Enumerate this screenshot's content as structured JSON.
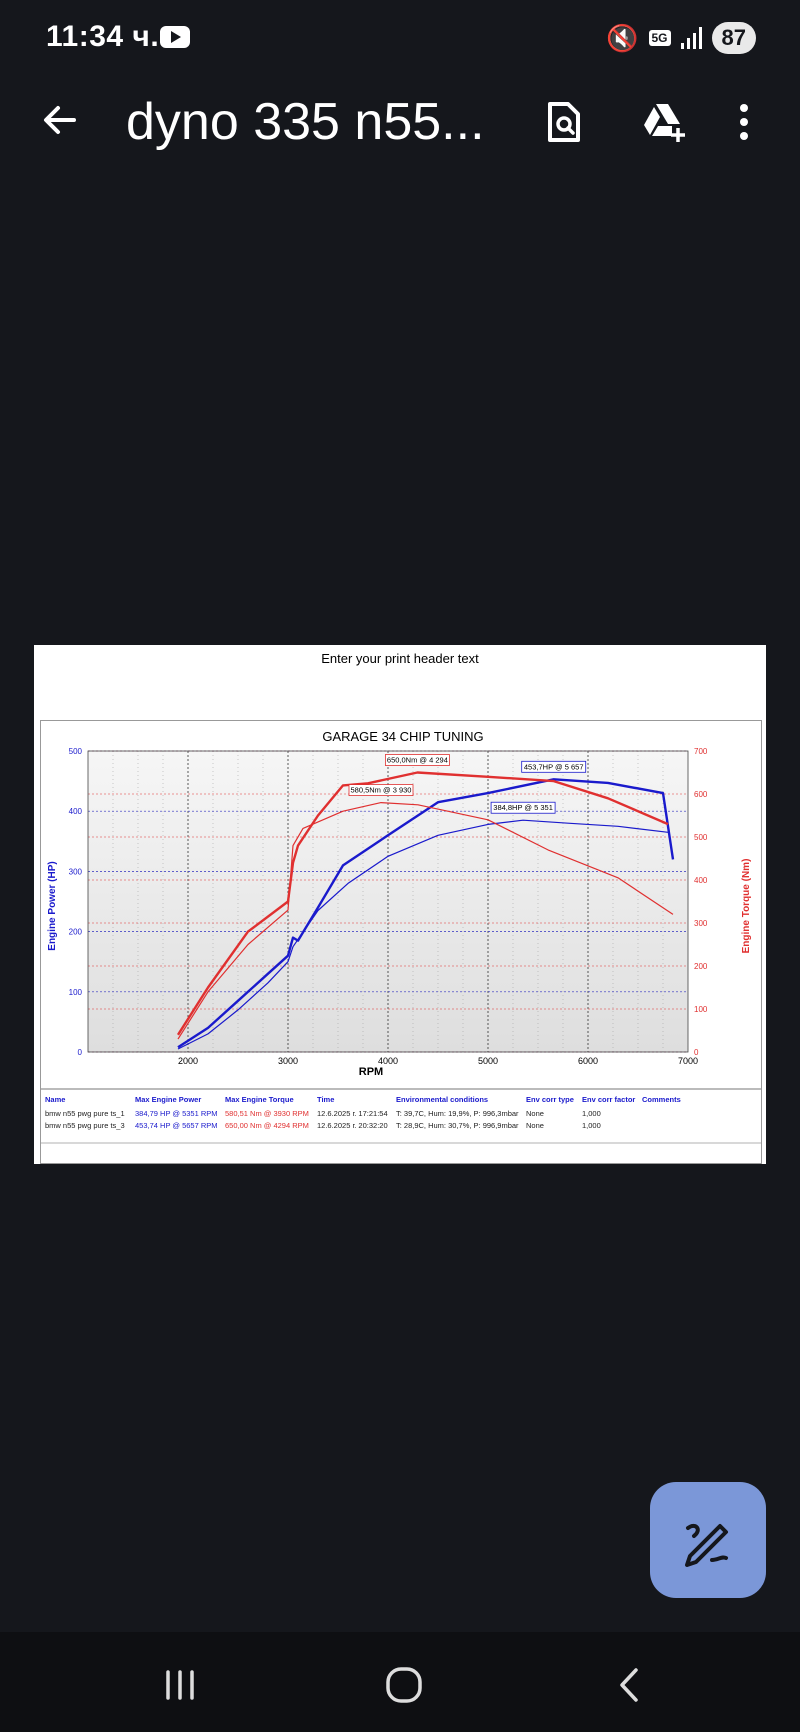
{
  "status_bar": {
    "time": "11:34 ч.",
    "network": "5G",
    "battery": "87"
  },
  "app_bar": {
    "title": "dyno 335 n55...",
    "icons": [
      "back-arrow-icon",
      "search-document-icon",
      "add-to-drive-icon",
      "more-options-icon"
    ]
  },
  "document": {
    "print_header": "Enter your print header text",
    "chart_title": "GARAGE 34 CHIP TUNING",
    "table": {
      "headers": [
        "Name",
        "Max Engine Power",
        "Max Engine Torque",
        "Time",
        "Environmental conditions",
        "Env corr type",
        "Env corr factor",
        "Comments"
      ],
      "rows": [
        [
          "bmw n55 pwg pure ts_1",
          "384,79 HP @ 5351 RPM",
          "580,51 Nm @ 3930 RPM",
          "12.6.2025 г. 17:21:54",
          "T: 39,7C, Hum: 19,9%, P: 996,3mbar",
          "None",
          "1,000",
          ""
        ],
        [
          "bmw n55 pwg pure ts_3",
          "453,74 HP @ 5657 RPM",
          "650,00 Nm @ 4294 RPM",
          "12.6.2025 г. 20:32:20",
          "T: 28,9C, Hum: 30,7%, P: 996,9mbar",
          "None",
          "1,000",
          ""
        ]
      ]
    }
  },
  "chart_data": {
    "type": "line",
    "title": "GARAGE 34 CHIP TUNING",
    "xlabel": "RPM",
    "ylabel": "Engine Power (HP)",
    "y2label": "Engine Torque (Nm)",
    "xlim": [
      1000,
      7000
    ],
    "ylim": [
      0,
      500
    ],
    "y2lim": [
      0,
      700
    ],
    "x_ticks": [
      2000,
      3000,
      4000,
      5000,
      6000,
      7000
    ],
    "y_ticks": [
      0,
      100,
      200,
      300,
      400,
      500
    ],
    "y2_ticks": [
      0,
      100,
      200,
      300,
      400,
      500,
      600,
      700
    ],
    "colors": {
      "power": "#1a1acc",
      "torque": "#e03030"
    },
    "series": [
      {
        "axis": "power",
        "run": "ts_1",
        "x": [
          1900,
          2200,
          2500,
          2800,
          3000,
          3050,
          3300,
          3600,
          4000,
          4500,
          5000,
          5351,
          5800,
          6300,
          6800
        ],
        "values": [
          5,
          30,
          70,
          115,
          150,
          175,
          235,
          280,
          325,
          360,
          378,
          385,
          380,
          375,
          365
        ]
      },
      {
        "axis": "power",
        "run": "ts_3",
        "x": [
          1900,
          2200,
          2500,
          2800,
          3000,
          3050,
          3100,
          3300,
          3550,
          4000,
          4500,
          5000,
          5657,
          6200,
          6750,
          6850
        ],
        "values": [
          8,
          40,
          85,
          130,
          160,
          190,
          185,
          240,
          310,
          360,
          415,
          430,
          453,
          447,
          430,
          320
        ]
      },
      {
        "axis": "torque",
        "run": "ts_1",
        "x": [
          1900,
          2200,
          2600,
          3000,
          3050,
          3150,
          3550,
          3930,
          4300,
          5000,
          5600,
          6300,
          6850
        ],
        "values": [
          30,
          140,
          250,
          330,
          480,
          520,
          560,
          580,
          575,
          540,
          470,
          405,
          320
        ]
      },
      {
        "axis": "torque",
        "run": "ts_3",
        "x": [
          1900,
          2200,
          2600,
          3000,
          3050,
          3100,
          3300,
          3550,
          3800,
          4294,
          5000,
          5657,
          6200,
          6800
        ],
        "values": [
          40,
          150,
          280,
          350,
          440,
          480,
          550,
          620,
          625,
          650,
          640,
          630,
          590,
          530
        ]
      }
    ],
    "annotations": [
      {
        "text": "650,0Nm @ 4 294",
        "x": 4294,
        "axis": "torque",
        "y": 650,
        "color": "#e03030"
      },
      {
        "text": "580,5Nm @ 3 930",
        "x": 3930,
        "axis": "torque",
        "y": 580,
        "color": "#e03030"
      },
      {
        "text": "453,7HP @ 5 657",
        "x": 5657,
        "axis": "power",
        "y": 453,
        "color": "#1a1acc"
      },
      {
        "text": "384,8HP @ 5 351",
        "x": 5351,
        "axis": "power",
        "y": 385,
        "color": "#1a1acc"
      }
    ]
  }
}
